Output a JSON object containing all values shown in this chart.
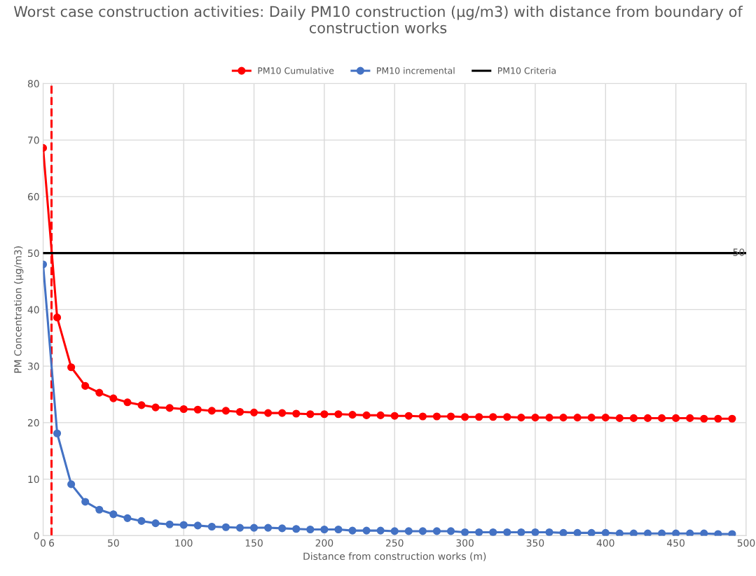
{
  "chart_data": {
    "type": "line",
    "title": "Worst case construction activities: Daily PM10 construction (µg/m3) with distance from boundary of construction works",
    "xlabel": "Distance from construction works (m)",
    "ylabel": "PM Concentration (µg/m3)",
    "x": [
      0,
      10,
      20,
      30,
      40,
      50,
      60,
      70,
      80,
      90,
      100,
      110,
      120,
      130,
      140,
      150,
      160,
      170,
      180,
      190,
      200,
      210,
      220,
      230,
      240,
      250,
      260,
      270,
      280,
      290,
      300,
      310,
      320,
      330,
      340,
      350,
      360,
      370,
      380,
      390,
      400,
      410,
      420,
      430,
      440,
      450,
      460,
      470,
      480,
      490
    ],
    "series": [
      {
        "name": "PM10 Cumulative",
        "color": "#ff0000",
        "marker": "circle",
        "values": [
          68.6,
          38.6,
          29.8,
          26.5,
          25.3,
          24.3,
          23.6,
          23.1,
          22.7,
          22.6,
          22.4,
          22.3,
          22.1,
          22.1,
          21.9,
          21.8,
          21.7,
          21.7,
          21.6,
          21.5,
          21.5,
          21.5,
          21.4,
          21.3,
          21.3,
          21.2,
          21.2,
          21.1,
          21.1,
          21.1,
          21.0,
          21.0,
          21.0,
          21.0,
          20.9,
          20.9,
          20.9,
          20.9,
          20.9,
          20.9,
          20.9,
          20.8,
          20.8,
          20.8,
          20.8,
          20.8,
          20.8,
          20.7,
          20.7,
          20.7
        ]
      },
      {
        "name": "PM10 incremental",
        "color": "#4472c4",
        "marker": "circle",
        "values": [
          48.0,
          18.1,
          9.1,
          6.0,
          4.6,
          3.8,
          3.1,
          2.6,
          2.2,
          2.0,
          1.9,
          1.8,
          1.6,
          1.5,
          1.4,
          1.4,
          1.4,
          1.3,
          1.2,
          1.1,
          1.1,
          1.1,
          0.9,
          0.9,
          0.9,
          0.8,
          0.8,
          0.8,
          0.8,
          0.8,
          0.6,
          0.6,
          0.6,
          0.6,
          0.6,
          0.6,
          0.6,
          0.5,
          0.5,
          0.5,
          0.5,
          0.4,
          0.4,
          0.4,
          0.4,
          0.4,
          0.4,
          0.4,
          0.3,
          0.3
        ]
      },
      {
        "name": "PM10 Criteria",
        "color": "#000000",
        "marker": "none",
        "x": [
          0,
          500
        ],
        "values": [
          50,
          50
        ],
        "value_labels": [
          null,
          "50"
        ]
      }
    ],
    "ref_lines": [
      {
        "axis": "x",
        "value": 6,
        "color": "#ff0000",
        "line_style": "dashed"
      }
    ],
    "xlim": [
      0,
      500
    ],
    "xticks": [
      0,
      6,
      50,
      100,
      150,
      200,
      250,
      300,
      350,
      400,
      450,
      500
    ],
    "ylim": [
      0,
      80
    ],
    "yticks": [
      0,
      10,
      20,
      30,
      40,
      50,
      60,
      70,
      80
    ],
    "grid": true,
    "legend": "top",
    "line_style": "solid"
  }
}
